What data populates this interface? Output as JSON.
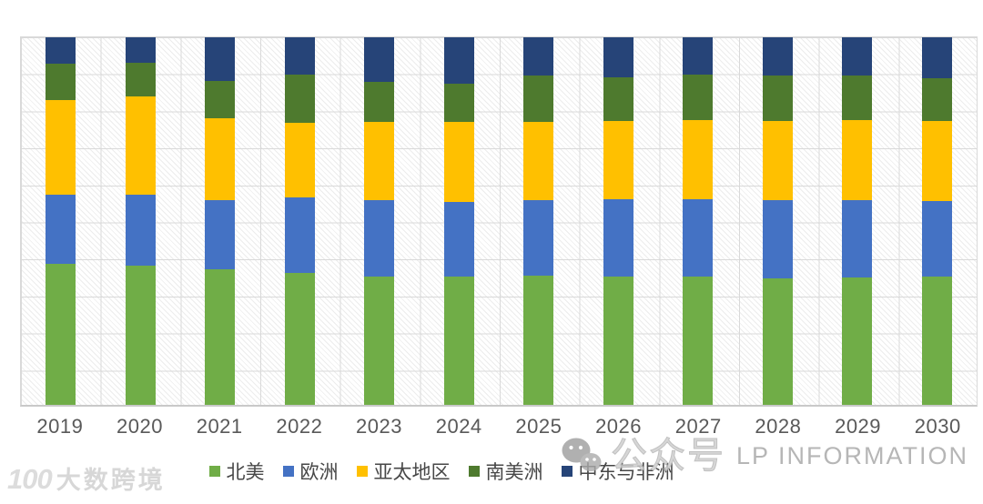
{
  "chart_data": {
    "type": "bar",
    "variant": "100%-stacked-column",
    "title": "",
    "xlabel": "",
    "ylabel": "",
    "ylim": [
      0,
      100
    ],
    "grid": true,
    "gridline_color": "#d9d9d9",
    "plot_background": "light-diagonal-hatch",
    "legend_position": "bottom",
    "y_axis_labels_visible": false,
    "categories": [
      "2019",
      "2020",
      "2021",
      "2022",
      "2023",
      "2024",
      "2025",
      "2026",
      "2027",
      "2028",
      "2029",
      "2030"
    ],
    "series": [
      {
        "key": "north-america",
        "name": "北美",
        "color": "#70AD47",
        "values": [
          38.4,
          37.9,
          37.0,
          35.9,
          35.0,
          34.9,
          35.2,
          34.9,
          34.9,
          34.5,
          34.7,
          34.9
        ]
      },
      {
        "key": "europe",
        "name": "欧洲",
        "color": "#4472C4",
        "values": [
          18.9,
          19.3,
          18.7,
          20.5,
          20.6,
          20.3,
          20.6,
          21.0,
          21.1,
          21.3,
          20.9,
          20.6
        ]
      },
      {
        "key": "apac",
        "name": "亚太地区",
        "color": "#FFC000",
        "values": [
          25.7,
          26.8,
          22.3,
          20.3,
          21.5,
          21.7,
          21.1,
          21.3,
          21.5,
          21.4,
          21.9,
          21.7
        ]
      },
      {
        "key": "south-america",
        "name": "南美洲",
        "color": "#4E7A2E",
        "values": [
          9.8,
          9.0,
          10.1,
          13.1,
          10.8,
          10.6,
          12.6,
          11.9,
          12.3,
          12.3,
          12.0,
          11.7
        ]
      },
      {
        "key": "middle-east-africa",
        "name": "中东与非洲",
        "color": "#264478",
        "values": [
          7.2,
          7.0,
          11.9,
          10.2,
          12.1,
          12.5,
          10.5,
          10.9,
          10.2,
          10.5,
          10.5,
          11.1
        ]
      }
    ]
  },
  "axis": {
    "x_tick_color": "#595959"
  },
  "watermarks": {
    "wechat_label": "公众号",
    "brand_text": "LP INFORMATION",
    "logo_left_symbol": "100",
    "logo_left_text": "大数跨境"
  }
}
